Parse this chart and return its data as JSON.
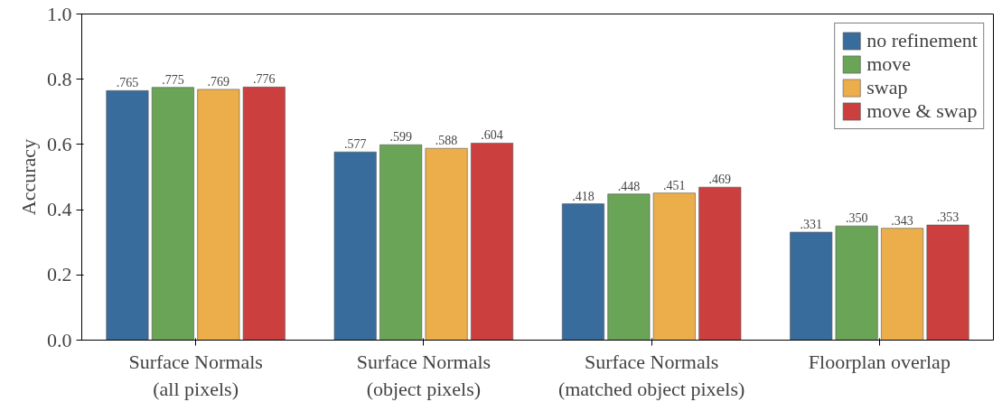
{
  "chart_data": {
    "type": "bar",
    "ylabel": "Accuracy",
    "categories": [
      "Surface Normals\n(all pixels)",
      "Surface Normals\n(object pixels)",
      "Surface Normals\n(matched object pixels)",
      "Floorplan overlap"
    ],
    "series": [
      {
        "name": "no refinement",
        "color": "#386c9c",
        "values": [
          0.765,
          0.577,
          0.418,
          0.331
        ],
        "value_labels": [
          ".765",
          ".577",
          ".418",
          ".331"
        ]
      },
      {
        "name": "move",
        "color": "#6aa456",
        "values": [
          0.775,
          0.599,
          0.448,
          0.35
        ],
        "value_labels": [
          ".775",
          ".599",
          ".448",
          ".350"
        ]
      },
      {
        "name": "swap",
        "color": "#ebae4a",
        "values": [
          0.769,
          0.588,
          0.451,
          0.343
        ],
        "value_labels": [
          ".769",
          ".588",
          ".451",
          ".343"
        ]
      },
      {
        "name": "move & swap",
        "color": "#cc3f3f",
        "values": [
          0.776,
          0.604,
          0.469,
          0.353
        ],
        "value_labels": [
          ".776",
          ".604",
          ".469",
          ".353"
        ]
      }
    ],
    "ylim": [
      0,
      1
    ],
    "yticks": [
      {
        "value": 0,
        "label": "0.0"
      },
      0.2,
      0.4,
      0.6,
      0.8,
      {
        "value": 1,
        "label": "1.0"
      }
    ],
    "legend": "top right",
    "grid": false
  }
}
